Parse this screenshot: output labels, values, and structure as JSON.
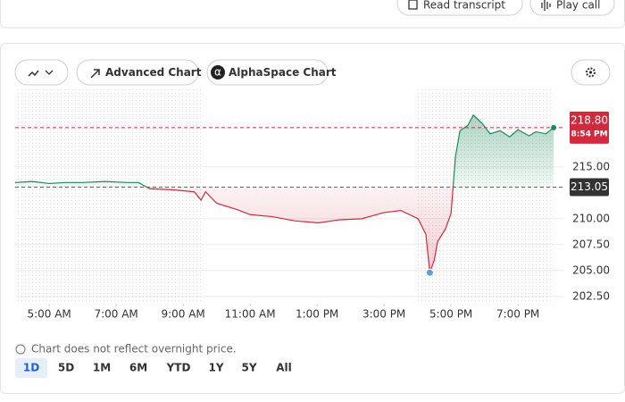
{
  "header": {
    "buttons": [
      "Read transcript",
      "Play call"
    ]
  },
  "toolbar": {
    "buttons": [
      "Advanced Chart",
      "AlphaSpace Chart"
    ],
    "alphaspace_icon": "α"
  },
  "chart_data": {
    "type": "line",
    "x": [
      239,
      270,
      300,
      330,
      360,
      400,
      440,
      460,
      480,
      520,
      560,
      572,
      580,
      600,
      636,
      660,
      700,
      740,
      782,
      820,
      860,
      900,
      930,
      961,
      975,
      982,
      990,
      996,
      1010,
      1020,
      1028,
      1036,
      1050,
      1060,
      1076,
      1090,
      1108,
      1125,
      1140,
      1160,
      1172,
      1190,
      1204
    ],
    "series": [
      {
        "color_up": "#1a8a5a",
        "color_down": "#d1293d",
        "values": [
          213.5,
          213.6,
          213.4,
          213.5,
          213.5,
          213.6,
          213.5,
          213.5,
          212.9,
          212.8,
          212.6,
          211.8,
          212.6,
          211.5,
          210.9,
          210.4,
          210.2,
          209.8,
          209.6,
          209.9,
          210.0,
          210.6,
          210.8,
          210.0,
          208.5,
          204.8,
          206.0,
          207.8,
          209.0,
          210.5,
          216.0,
          218.5,
          219.0,
          220.0,
          219.2,
          218.2,
          218.5,
          217.9,
          218.6,
          218.0,
          218.4,
          218.2,
          218.8
        ]
      }
    ],
    "xlim": [
      239,
      1223
    ],
    "xticks": [
      {
        "value": 300,
        "label": "5:00 AM"
      },
      {
        "value": 420,
        "label": "7:00 AM"
      },
      {
        "value": 540,
        "label": "9:00 AM"
      },
      {
        "value": 660,
        "label": "11:00 AM"
      },
      {
        "value": 780,
        "label": "1:00 PM"
      },
      {
        "value": 900,
        "label": "3:00 PM"
      },
      {
        "value": 1020,
        "label": "5:00 PM"
      },
      {
        "value": 1140,
        "label": "7:00 PM"
      }
    ],
    "ylim": [
      201.8,
      222.75
    ],
    "yticks": [
      {
        "value": 202.5,
        "label": "202.50"
      },
      {
        "value": 205,
        "label": "205.00"
      },
      {
        "value": 207.5,
        "label": "207.50"
      },
      {
        "value": 210,
        "label": "210.00"
      },
      {
        "value": 215,
        "label": "215.00"
      }
    ],
    "grid": true,
    "current_price": {
      "value": 218.8,
      "label": "218.80",
      "time": "8:54 PM"
    },
    "previous_close": {
      "value": 213.05,
      "label": "213.05"
    },
    "low_marker_index": 25,
    "note": "Chart does not reflect overnight price.",
    "ranges": [
      "1D",
      "5D",
      "1M",
      "6M",
      "YTD",
      "1Y",
      "5Y",
      "All"
    ],
    "selected_range": 0
  }
}
